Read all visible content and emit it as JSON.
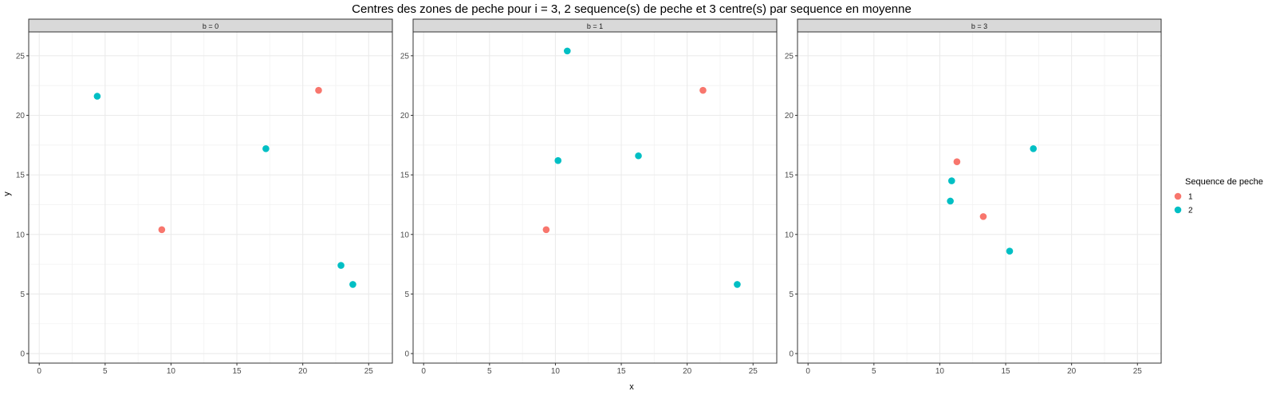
{
  "chart_data": {
    "type": "scatter",
    "title": "Centres des zones de peche pour i = 3, 2 sequence(s) de peche et 3 centre(s) par sequence en moyenne",
    "xlabel": "x",
    "ylabel": "y",
    "xlim": [
      -0.8,
      26.8
    ],
    "ylim": [
      -0.8,
      27.0
    ],
    "x_ticks": [
      "0",
      "5",
      "10",
      "15",
      "20",
      "25"
    ],
    "y_ticks": [
      "0",
      "5",
      "10",
      "15",
      "20",
      "25"
    ],
    "grid": true,
    "legend": {
      "title": "Sequence de peche",
      "position": "right",
      "entries": [
        {
          "label": "1",
          "color": "#F8766D"
        },
        {
          "label": "2",
          "color": "#00BFC4"
        }
      ]
    },
    "panels": [
      {
        "label": "b = 0",
        "points": [
          {
            "x": 21.2,
            "y": 22.1,
            "group": "1"
          },
          {
            "x": 9.3,
            "y": 10.4,
            "group": "1"
          },
          {
            "x": 4.4,
            "y": 21.6,
            "group": "2"
          },
          {
            "x": 17.2,
            "y": 17.2,
            "group": "2"
          },
          {
            "x": 22.9,
            "y": 7.4,
            "group": "2"
          },
          {
            "x": 23.8,
            "y": 5.8,
            "group": "2"
          }
        ]
      },
      {
        "label": "b = 1",
        "points": [
          {
            "x": 21.2,
            "y": 22.1,
            "group": "1"
          },
          {
            "x": 9.3,
            "y": 10.4,
            "group": "1"
          },
          {
            "x": 10.9,
            "y": 25.4,
            "group": "2"
          },
          {
            "x": 10.2,
            "y": 16.2,
            "group": "2"
          },
          {
            "x": 16.3,
            "y": 16.6,
            "group": "2"
          },
          {
            "x": 23.8,
            "y": 5.8,
            "group": "2"
          }
        ]
      },
      {
        "label": "b = 3",
        "points": [
          {
            "x": 11.3,
            "y": 16.1,
            "group": "1"
          },
          {
            "x": 13.3,
            "y": 11.5,
            "group": "1"
          },
          {
            "x": 17.1,
            "y": 17.2,
            "group": "2"
          },
          {
            "x": 10.9,
            "y": 14.5,
            "group": "2"
          },
          {
            "x": 10.8,
            "y": 12.8,
            "group": "2"
          },
          {
            "x": 15.3,
            "y": 8.6,
            "group": "2"
          }
        ]
      }
    ]
  }
}
